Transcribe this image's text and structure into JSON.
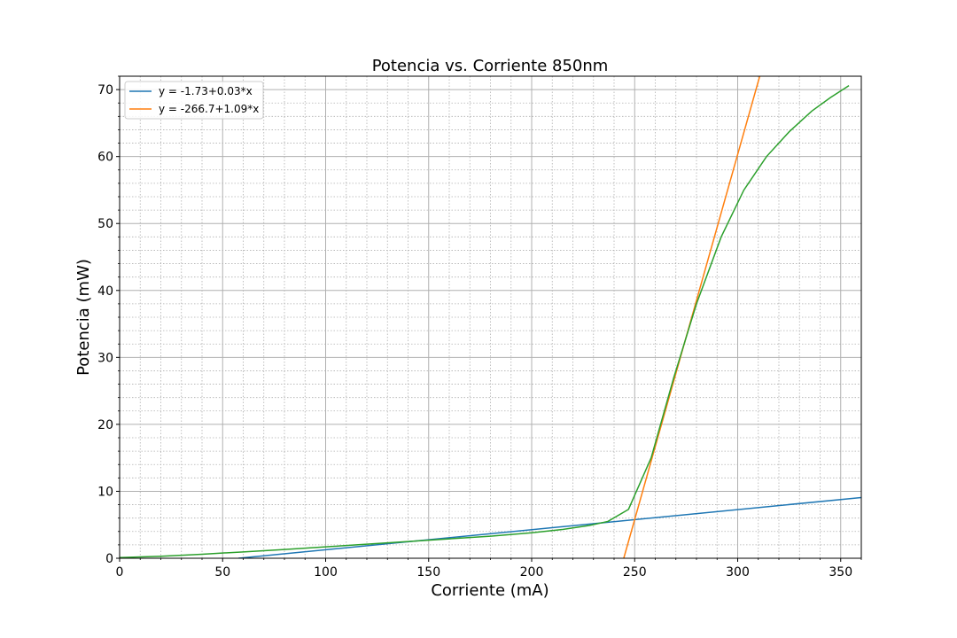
{
  "chart_data": {
    "type": "line",
    "title": "Potencia vs. Corriente 850nm",
    "xlabel": "Corriente (mA)",
    "ylabel": "Potencia (mW)",
    "xlim": [
      0,
      360
    ],
    "ylim": [
      0,
      72
    ],
    "x_ticks": [
      0,
      50,
      100,
      150,
      200,
      250,
      300,
      350
    ],
    "y_ticks": [
      0,
      10,
      20,
      30,
      40,
      50,
      60,
      70
    ],
    "grid": "major and minor",
    "legend_position": "upper-left",
    "series": [
      {
        "name": "y = -1.73+0.03*x",
        "color": "#1f77b4",
        "x": [
          57.7,
          360
        ],
        "y": [
          0,
          9.07
        ]
      },
      {
        "name": "y = -266.7+1.09*x",
        "color": "#ff7f0e",
        "x": [
          244.7,
          310.7
        ],
        "y": [
          0,
          72
        ]
      },
      {
        "color": "#2ca02c",
        "x": [
          0,
          10,
          20,
          40,
          60,
          80,
          100,
          120,
          140,
          160,
          180,
          200,
          215,
          228,
          237,
          247,
          258,
          269,
          280,
          292,
          303,
          314,
          325,
          336,
          345,
          354
        ],
        "y": [
          0.1,
          0.2,
          0.3,
          0.6,
          0.95,
          1.3,
          1.7,
          2.1,
          2.5,
          2.9,
          3.3,
          3.8,
          4.3,
          4.9,
          5.5,
          7.3,
          15,
          27,
          38,
          48,
          55,
          60,
          63.7,
          66.8,
          68.8,
          70.6
        ]
      }
    ]
  }
}
